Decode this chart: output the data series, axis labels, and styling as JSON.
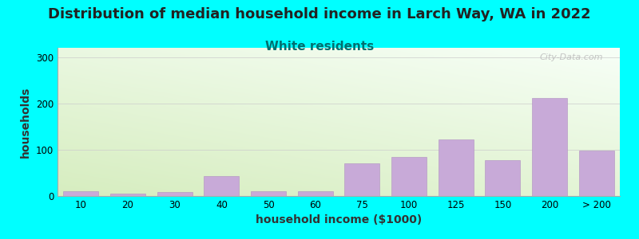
{
  "title": "Distribution of median household income in Larch Way, WA in 2022",
  "subtitle": "White residents",
  "xlabel": "household income ($1000)",
  "ylabel": "households",
  "background_color": "#00FFFF",
  "bar_color": "#c8aad8",
  "bar_edge_color": "#b090c0",
  "categories": [
    "10",
    "20",
    "30",
    "40",
    "50",
    "60",
    "75",
    "100",
    "125",
    "150",
    "200",
    "> 200"
  ],
  "values": [
    10,
    5,
    8,
    43,
    10,
    10,
    70,
    84,
    122,
    78,
    212,
    98
  ],
  "ylim": [
    0,
    320
  ],
  "yticks": [
    0,
    100,
    200,
    300
  ],
  "title_fontsize": 13,
  "subtitle_fontsize": 11,
  "subtitle_color": "#007070",
  "axis_label_fontsize": 10,
  "tick_fontsize": 8.5,
  "watermark_text": "City-Data.com",
  "watermark_color": "#bbbbbb",
  "grad_color_topleft": [
    0.97,
    1.0,
    0.97
  ],
  "grad_color_bottomleft": [
    0.84,
    0.93,
    0.75
  ]
}
